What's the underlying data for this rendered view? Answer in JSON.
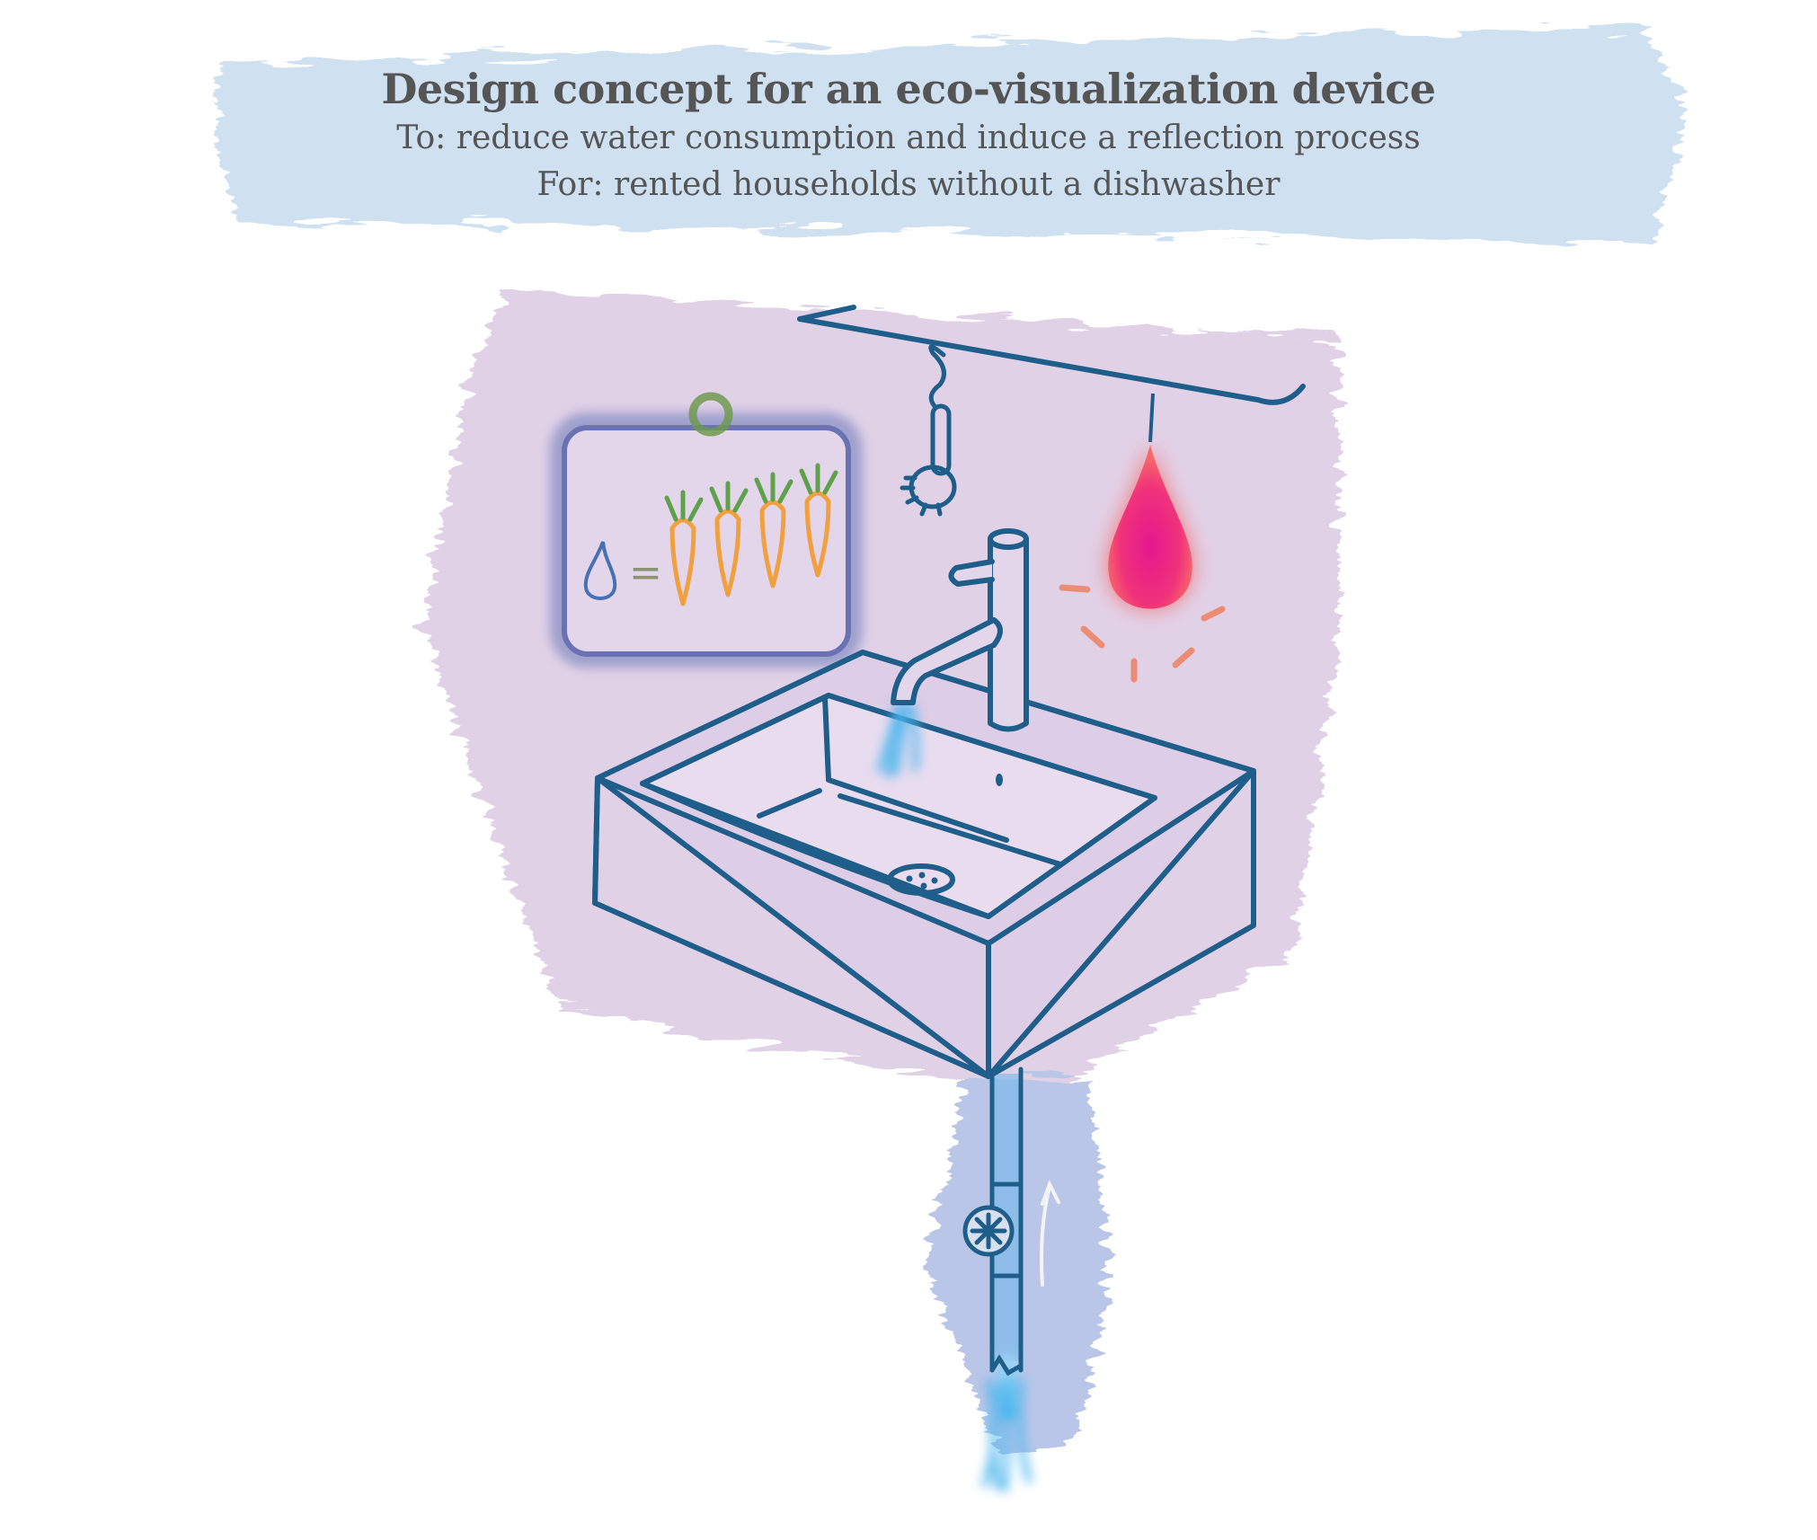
{
  "header": {
    "title": "Design concept for an eco-visualization device",
    "line_to": "To: reduce water consumption and induce a reflection process",
    "line_for": "For: rented households without a dishwasher"
  },
  "illustration": {
    "display_equation": "=",
    "carrot_count": 4,
    "colors": {
      "sky_wash": "#cfe0f1",
      "wall_wash": "#e1d1e7",
      "pipe_wash": "#b9c6e8",
      "outline": "#1f5e8a",
      "water": "#48b5ee",
      "alert_lamp": "#f0327a",
      "carrot": "#f0a03e",
      "carrot_leaf": "#5fa04a",
      "status_ring": "#6f9a4f",
      "screen_glow": "#8c93c6",
      "title_text": "#555555"
    }
  }
}
